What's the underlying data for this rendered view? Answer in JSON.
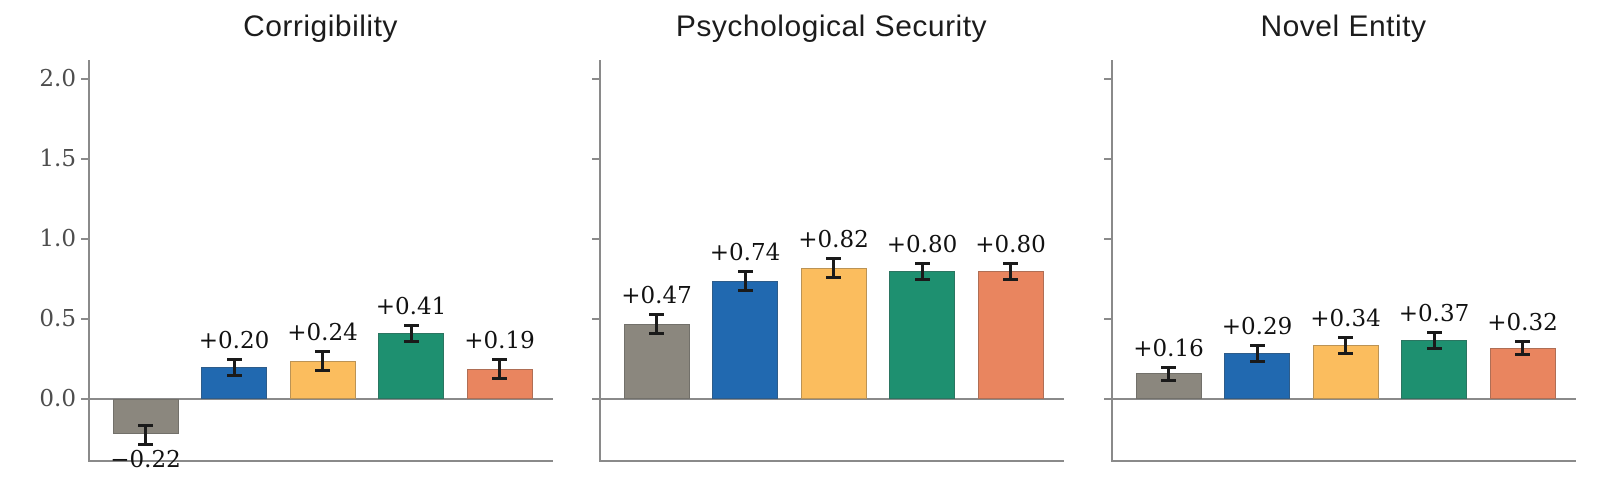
{
  "chart_data": {
    "type": "bar",
    "panels": [
      {
        "title": "Corrigibility",
        "values": [
          -0.22,
          0.2,
          0.24,
          0.41,
          0.19
        ],
        "labels": [
          "−0.22",
          "+0.20",
          "+0.24",
          "+0.41",
          "+0.19"
        ],
        "errors": [
          0.06,
          0.05,
          0.06,
          0.05,
          0.06
        ]
      },
      {
        "title": "Psychological Security",
        "values": [
          0.47,
          0.74,
          0.82,
          0.8,
          0.8
        ],
        "labels": [
          "+0.47",
          "+0.74",
          "+0.82",
          "+0.80",
          "+0.80"
        ],
        "errors": [
          0.06,
          0.06,
          0.06,
          0.05,
          0.05
        ]
      },
      {
        "title": "Novel Entity",
        "values": [
          0.16,
          0.29,
          0.34,
          0.37,
          0.32
        ],
        "labels": [
          "+0.16",
          "+0.29",
          "+0.34",
          "+0.37",
          "+0.32"
        ],
        "errors": [
          0.04,
          0.05,
          0.05,
          0.05,
          0.04
        ]
      }
    ],
    "series_colors": [
      "#8b877e",
      "#2169b0",
      "#fbbd5e",
      "#1e9070",
      "#e9855f"
    ],
    "series_color_names": [
      "gray",
      "blue",
      "yellow",
      "green",
      "salmon"
    ],
    "yticks": [
      2.0,
      1.5,
      1.0,
      0.5,
      0.0
    ],
    "ytick_labels": [
      "2.0",
      "1.5",
      "1.0",
      "0.5",
      "0.0"
    ],
    "ylim": [
      -0.39,
      2.12
    ],
    "grid": false,
    "legend_position": "none",
    "error_bars": true
  },
  "colors": {
    "axis": "#8a8a8a",
    "title_text": "#1c1c1c",
    "tick_text": "#4d4d4d",
    "value_text": "#111111",
    "errorbar": "#1a1a1a",
    "background": "#ffffff"
  }
}
